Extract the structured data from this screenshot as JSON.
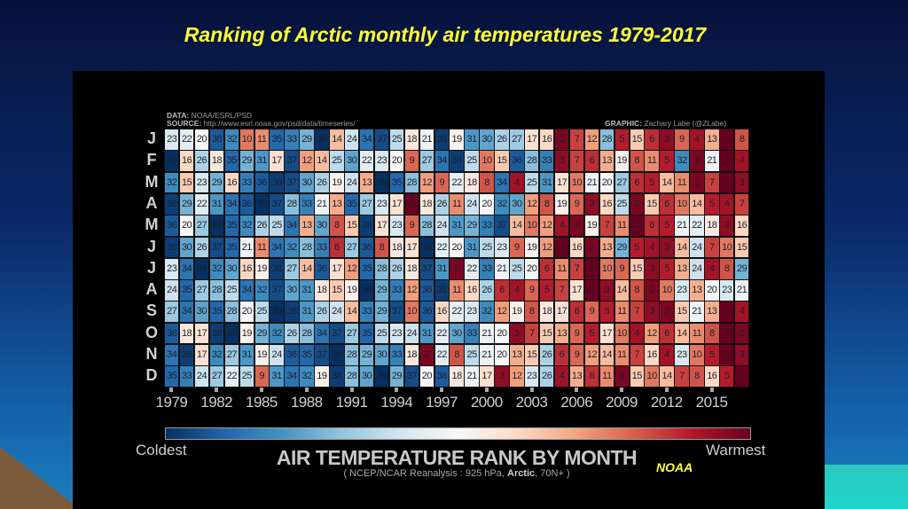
{
  "slide_title": "Ranking of Arctic monthly air temperatures 1979-2017",
  "source": {
    "data_label": "DATA:",
    "data_value": "NOAA/ESRL/PSD",
    "source_label": "SOURCE:",
    "source_value": "http://www.esrl.noaa.gov/psd/data/timeseries/",
    "graphic_label": "GRAPHIC:",
    "graphic_value": "Zachary Labe (@ZLabe)"
  },
  "noaa_label": "NOAA",
  "chart_data": {
    "type": "heatmap",
    "title": "AIR TEMPERATURE RANK BY MONTH",
    "subtitle_pre": "( NCEP/NCAR Reanalysis : 925 hPa, ",
    "subtitle_bold": "Arctic",
    "subtitle_post": ", 70N+ )",
    "colorbar": {
      "low_label": "Coldest",
      "high_label": "Warmest",
      "colormap": "RdBu",
      "low_color": "#053061",
      "mid_color": "#f7f7f7",
      "high_color": "#67001f"
    },
    "rows": [
      "J",
      "F",
      "M",
      "A",
      "M",
      "J",
      "J",
      "A",
      "S",
      "O",
      "N",
      "D"
    ],
    "x_start": 1979,
    "x_end": 2017,
    "x_tick_labels": [
      "1979",
      "1982",
      "1985",
      "1988",
      "1991",
      "1994",
      "1997",
      "2000",
      "2003",
      "2006",
      "2009",
      "2012",
      "2015"
    ],
    "rank_range": [
      1,
      39
    ],
    "values": [
      [
        23,
        22,
        20,
        36,
        32,
        10,
        11,
        35,
        33,
        29,
        39,
        14,
        24,
        34,
        37,
        25,
        18,
        21,
        38,
        19,
        31,
        30,
        26,
        27,
        17,
        16,
        2,
        7,
        12,
        28,
        5,
        15,
        6,
        3,
        9,
        4,
        13,
        1,
        8
      ],
      [
        39,
        16,
        26,
        18,
        35,
        29,
        31,
        17,
        37,
        12,
        14,
        25,
        30,
        22,
        23,
        20,
        9,
        27,
        34,
        38,
        25,
        10,
        15,
        36,
        28,
        33,
        3,
        7,
        6,
        13,
        19,
        8,
        11,
        5,
        32,
        2,
        21,
        1,
        4
      ],
      [
        32,
        15,
        23,
        29,
        16,
        33,
        36,
        38,
        37,
        30,
        26,
        19,
        24,
        13,
        39,
        35,
        28,
        12,
        9,
        22,
        18,
        8,
        34,
        4,
        25,
        31,
        17,
        10,
        21,
        20,
        27,
        6,
        5,
        14,
        11,
        2,
        7,
        1,
        3
      ],
      [
        38,
        29,
        22,
        31,
        34,
        36,
        39,
        37,
        28,
        33,
        21,
        13,
        35,
        27,
        23,
        17,
        1,
        18,
        26,
        11,
        24,
        20,
        32,
        30,
        12,
        8,
        19,
        9,
        3,
        16,
        25,
        2,
        15,
        6,
        10,
        14,
        5,
        4,
        7
      ],
      [
        36,
        20,
        27,
        39,
        35,
        32,
        26,
        25,
        34,
        13,
        30,
        8,
        15,
        38,
        17,
        23,
        9,
        28,
        24,
        31,
        29,
        33,
        37,
        14,
        10,
        12,
        4,
        2,
        19,
        7,
        11,
        1,
        6,
        5,
        21,
        22,
        18,
        3,
        16
      ],
      [
        38,
        30,
        26,
        37,
        35,
        21,
        11,
        34,
        32,
        28,
        33,
        6,
        27,
        36,
        8,
        18,
        17,
        39,
        22,
        20,
        31,
        25,
        23,
        9,
        19,
        12,
        1,
        16,
        2,
        13,
        29,
        5,
        4,
        3,
        14,
        24,
        7,
        10,
        15
      ],
      [
        23,
        34,
        39,
        32,
        30,
        16,
        19,
        38,
        27,
        14,
        36,
        17,
        12,
        35,
        28,
        26,
        18,
        37,
        31,
        2,
        22,
        33,
        21,
        25,
        20,
        6,
        11,
        7,
        1,
        10,
        9,
        15,
        3,
        5,
        13,
        24,
        4,
        8,
        29
      ],
      [
        24,
        35,
        27,
        28,
        25,
        34,
        32,
        37,
        30,
        31,
        18,
        15,
        19,
        39,
        29,
        33,
        12,
        36,
        38,
        11,
        16,
        26,
        6,
        4,
        9,
        5,
        7,
        17,
        1,
        3,
        14,
        8,
        2,
        10,
        23,
        13,
        20,
        23,
        21
      ],
      [
        27,
        34,
        30,
        35,
        28,
        20,
        25,
        39,
        38,
        31,
        26,
        24,
        14,
        33,
        29,
        37,
        10,
        36,
        16,
        22,
        23,
        32,
        12,
        19,
        8,
        18,
        17,
        6,
        9,
        5,
        11,
        7,
        3,
        2,
        15,
        21,
        13,
        1,
        4
      ],
      [
        36,
        18,
        17,
        38,
        39,
        19,
        29,
        32,
        26,
        28,
        34,
        37,
        27,
        35,
        25,
        23,
        24,
        31,
        22,
        30,
        33,
        21,
        20,
        3,
        7,
        15,
        13,
        9,
        5,
        17,
        10,
        4,
        12,
        6,
        14,
        11,
        8,
        1,
        2
      ],
      [
        34,
        38,
        17,
        32,
        27,
        31,
        19,
        24,
        36,
        35,
        37,
        39,
        28,
        29,
        30,
        33,
        18,
        2,
        22,
        8,
        25,
        21,
        20,
        13,
        15,
        26,
        6,
        9,
        12,
        14,
        11,
        7,
        16,
        4,
        23,
        10,
        5,
        1,
        3
      ],
      [
        35,
        33,
        24,
        27,
        22,
        25,
        9,
        31,
        34,
        32,
        19,
        38,
        28,
        30,
        39,
        29,
        37,
        20,
        36,
        18,
        21,
        17,
        3,
        12,
        23,
        26,
        4,
        13,
        6,
        11,
        2,
        15,
        10,
        14,
        7,
        8,
        16,
        5,
        1
      ]
    ]
  }
}
